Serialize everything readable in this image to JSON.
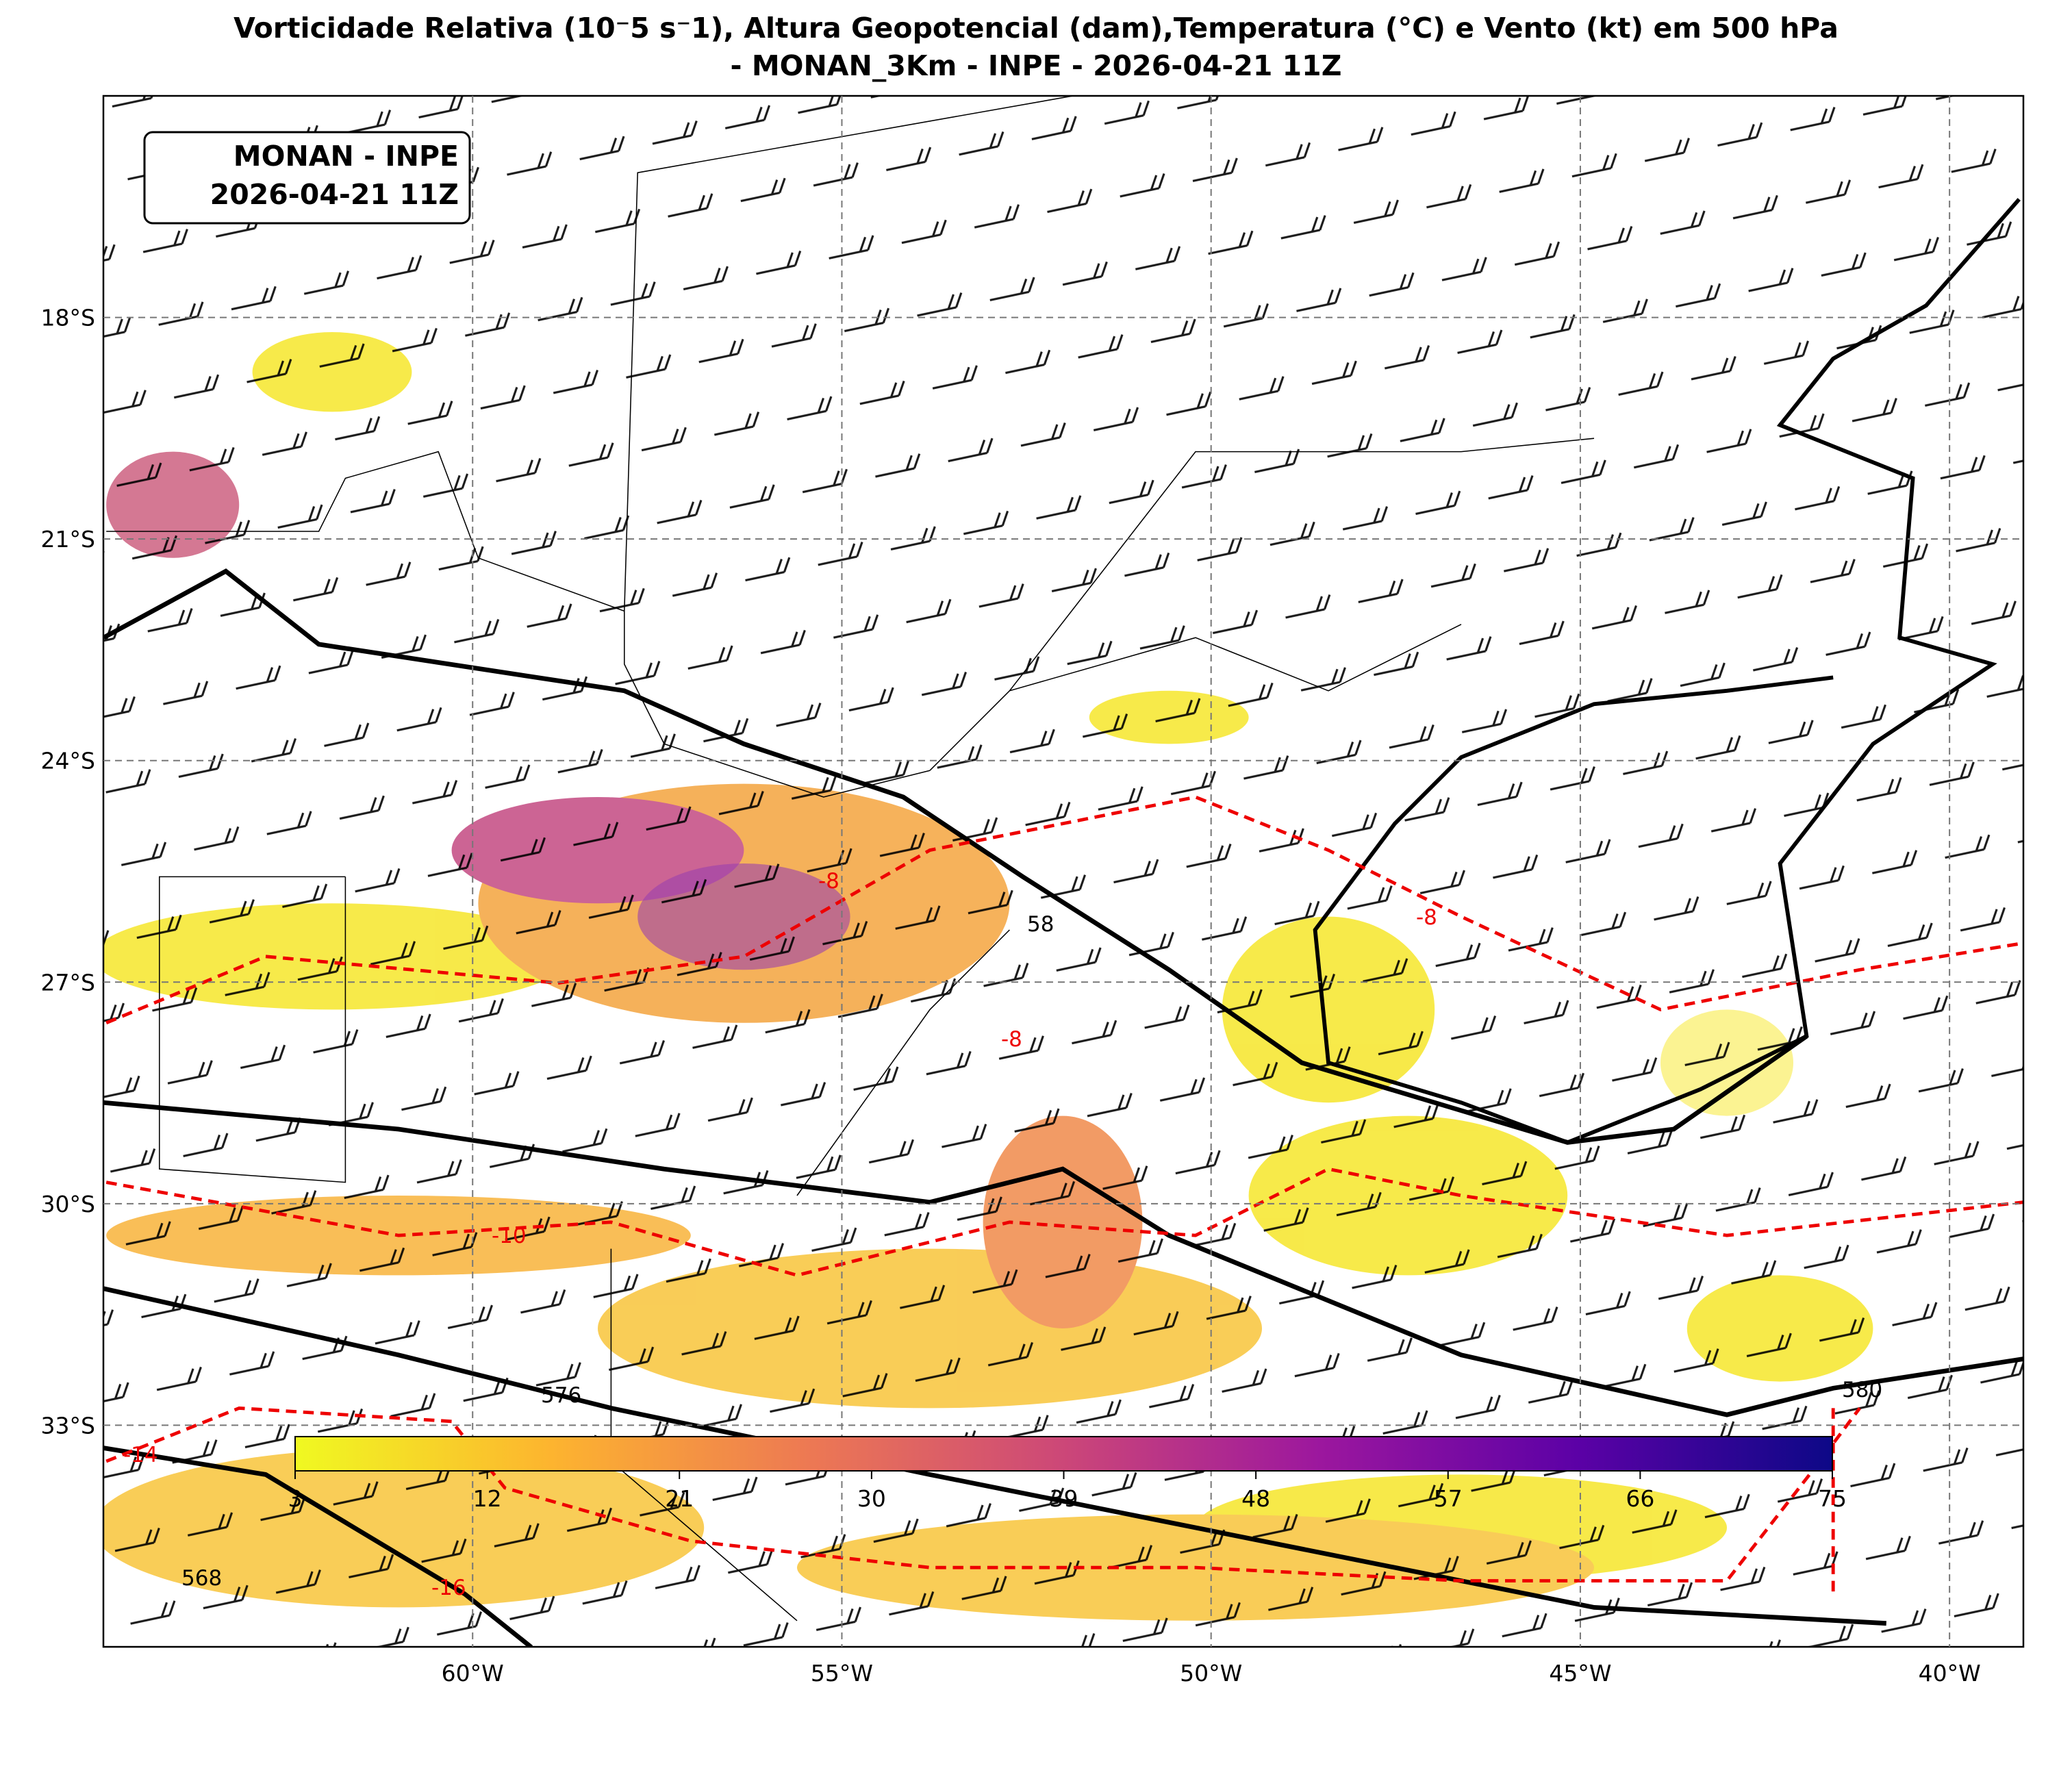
{
  "title": [
    "Vorticidade Relativa (10⁻5 s⁻1), Altura Geopotencial (dam),Temperatura (°C) e Vento (kt) em 500 hPa",
    "- MONAN_3Km - INPE - 2026-04-21 11Z"
  ],
  "info_box": [
    "MONAN - INPE",
    "2026-04-21 11Z"
  ],
  "map": {
    "lon_range": [
      -65,
      -39
    ],
    "lat_range": [
      -36,
      -15
    ],
    "longitudes": [
      {
        "value": -60,
        "label": "60°W"
      },
      {
        "value": -55,
        "label": "55°W"
      },
      {
        "value": -50,
        "label": "50°W"
      },
      {
        "value": -45,
        "label": "45°W"
      },
      {
        "value": -40,
        "label": "40°W"
      }
    ],
    "latitudes": [
      {
        "value": -18,
        "label": "18°S"
      },
      {
        "value": -21,
        "label": "21°S"
      },
      {
        "value": -24,
        "label": "24°S"
      },
      {
        "value": -27,
        "label": "27°S"
      },
      {
        "value": -30,
        "label": "30°S"
      },
      {
        "value": -33,
        "label": "33°S"
      }
    ]
  },
  "contour_labels": {
    "height": [
      "580",
      "576",
      "568",
      "58"
    ],
    "temperature": [
      "-8",
      "-8",
      "-8",
      "-10",
      "-14",
      "-16"
    ]
  },
  "colorbar": {
    "range": [
      3,
      75
    ],
    "ticks": [
      3,
      12,
      21,
      30,
      39,
      48,
      57,
      66,
      75
    ],
    "colors": [
      "#f0f921",
      "#fdb42f",
      "#ed7953",
      "#cc4778",
      "#9c179e",
      "#5c01a6",
      "#0d0887"
    ]
  }
}
